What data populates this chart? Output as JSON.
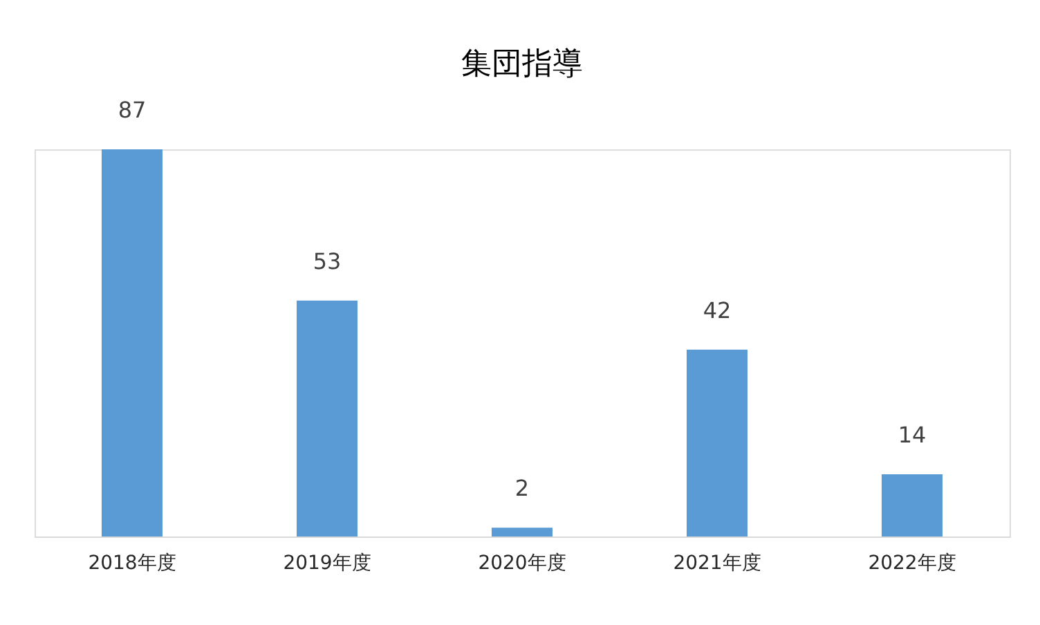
{
  "chart_data": {
    "type": "bar",
    "title": "集団指導",
    "categories": [
      "2018年度",
      "2019年度",
      "2020年度",
      "2021年度",
      "2022年度"
    ],
    "values": [
      87,
      53,
      2,
      42,
      14
    ],
    "color": "#5b9bd5",
    "data_labels": true,
    "grid": false,
    "tick_labels": "x"
  }
}
